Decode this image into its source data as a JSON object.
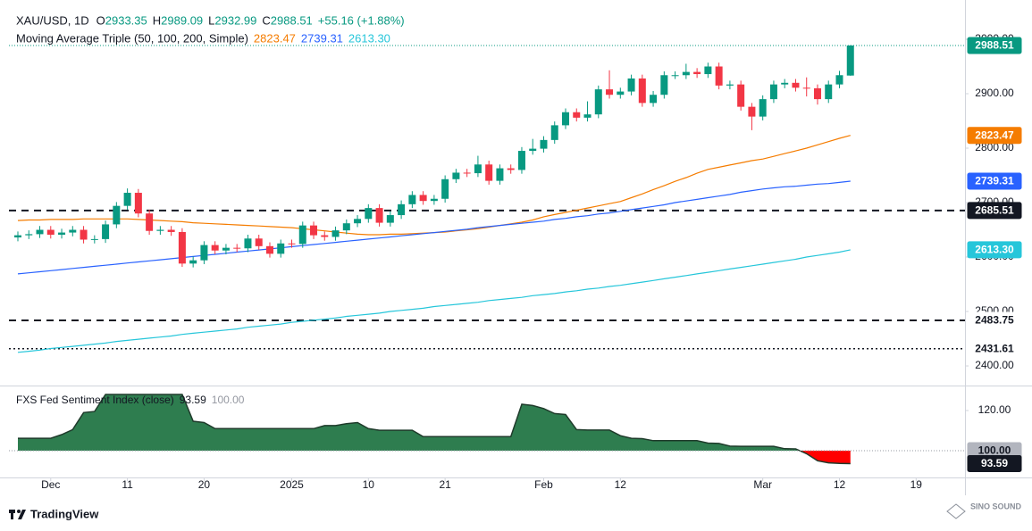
{
  "chart_data": [
    {
      "type": "candlestick",
      "title": "XAU/USD, 1D",
      "ohlc_labels": [
        "O",
        "H",
        "L",
        "C"
      ],
      "change_label": "+55.16 (+1.88%)",
      "open": [
        2636,
        2640,
        2642,
        2650,
        2641,
        2645,
        2650,
        2632,
        2633,
        2660,
        2694,
        2718,
        2680,
        2648,
        2650,
        2646,
        2588,
        2594,
        2622,
        2612,
        2617,
        2616,
        2634,
        2620,
        2606,
        2625,
        2624,
        2658,
        2640,
        2637,
        2649,
        2662,
        2670,
        2690,
        2663,
        2677,
        2697,
        2714,
        2703,
        2707,
        2743,
        2755,
        2754,
        2770,
        2740,
        2763,
        2760,
        2795,
        2799,
        2815,
        2842,
        2866,
        2856,
        2862,
        2908,
        2898,
        2904,
        2928,
        2883,
        2898,
        2934,
        2934,
        2940,
        2936,
        2950,
        2915,
        2917,
        2876,
        2858,
        2890,
        2917,
        2920,
        2911,
        2910,
        2890,
        2917,
        2933.35
      ],
      "high": [
        2647,
        2649,
        2657,
        2657,
        2652,
        2657,
        2657,
        2640,
        2667,
        2701,
        2726,
        2725,
        2687,
        2657,
        2657,
        2653,
        2601,
        2629,
        2629,
        2624,
        2624,
        2641,
        2641,
        2627,
        2632,
        2632,
        2665,
        2665,
        2647,
        2656,
        2669,
        2677,
        2697,
        2697,
        2684,
        2704,
        2721,
        2721,
        2714,
        2750,
        2762,
        2762,
        2786,
        2777,
        2770,
        2770,
        2802,
        2817,
        2822,
        2849,
        2873,
        2873,
        2886,
        2915,
        2943,
        2911,
        2935,
        2935,
        2905,
        2941,
        2941,
        2955,
        2947,
        2957,
        2957,
        2924,
        2924,
        2883,
        2897,
        2924,
        2927,
        2927,
        2930,
        2917,
        2924,
        2942,
        2989.09
      ],
      "low": [
        2629,
        2633,
        2635,
        2634,
        2634,
        2638,
        2625,
        2625,
        2626,
        2653,
        2687,
        2673,
        2641,
        2641,
        2639,
        2582,
        2581,
        2587,
        2605,
        2605,
        2609,
        2609,
        2613,
        2599,
        2599,
        2617,
        2617,
        2633,
        2630,
        2630,
        2642,
        2655,
        2663,
        2656,
        2656,
        2670,
        2690,
        2696,
        2696,
        2700,
        2736,
        2747,
        2747,
        2733,
        2733,
        2753,
        2753,
        2788,
        2792,
        2808,
        2835,
        2849,
        2849,
        2855,
        2891,
        2891,
        2897,
        2876,
        2876,
        2891,
        2927,
        2927,
        2929,
        2929,
        2908,
        2908,
        2869,
        2833,
        2851,
        2883,
        2910,
        2904,
        2895,
        2880,
        2883,
        2910,
        2932.99
      ],
      "close": [
        2640,
        2642,
        2650,
        2641,
        2645,
        2650,
        2632,
        2633,
        2660,
        2694,
        2718,
        2680,
        2648,
        2650,
        2646,
        2588,
        2594,
        2622,
        2612,
        2617,
        2616,
        2634,
        2620,
        2606,
        2625,
        2624,
        2658,
        2640,
        2637,
        2649,
        2662,
        2670,
        2690,
        2663,
        2677,
        2697,
        2714,
        2703,
        2707,
        2743,
        2755,
        2754,
        2770,
        2740,
        2763,
        2760,
        2795,
        2799,
        2815,
        2842,
        2866,
        2856,
        2862,
        2908,
        2898,
        2904,
        2928,
        2883,
        2898,
        2934,
        2934,
        2940,
        2936,
        2950,
        2915,
        2917,
        2876,
        2858,
        2890,
        2917,
        2920,
        2911,
        2910,
        2890,
        2917,
        2934,
        2988.51
      ],
      "up_color": "#089981",
      "down_color": "#f23645",
      "ylim": [
        2364,
        3059
      ],
      "yticks": [
        {
          "value": 2400,
          "label": "2400.00"
        },
        {
          "value": 2500,
          "label": "2500.00"
        },
        {
          "value": 2600,
          "label": "2600.00"
        },
        {
          "value": 2700,
          "label": "2700.00"
        },
        {
          "value": 2800,
          "label": "2800.00"
        },
        {
          "value": 2900,
          "label": "2900.00"
        },
        {
          "value": 3000,
          "label": "3000.00"
        }
      ],
      "xticks": [
        {
          "value": 3,
          "label": "Dec"
        },
        {
          "value": 10,
          "label": "11"
        },
        {
          "value": 17,
          "label": "20"
        },
        {
          "value": 25,
          "label": "2025"
        },
        {
          "value": 32,
          "label": "10"
        },
        {
          "value": 39,
          "label": "21"
        },
        {
          "value": 48,
          "label": "Feb"
        },
        {
          "value": 55,
          "label": "12"
        },
        {
          "value": 68,
          "label": "Mar"
        },
        {
          "value": 75,
          "label": "12"
        },
        {
          "value": 82,
          "label": "19"
        }
      ],
      "moving_average": {
        "name": "Moving Average Triple (50, 100, 200, Simple)",
        "series": [
          {
            "color": "#f57c00",
            "values": [
              2667,
              2668,
              2668,
              2669,
              2669,
              2669,
              2670,
              2670,
              2670,
              2670,
              2670,
              2669,
              2668,
              2667,
              2666,
              2665,
              2663,
              2662,
              2661,
              2660,
              2659,
              2658,
              2657,
              2656,
              2655,
              2654,
              2652,
              2650,
              2648,
              2646,
              2644,
              2642,
              2641,
              2641,
              2642,
              2642,
              2643,
              2644,
              2645,
              2646,
              2648,
              2650,
              2652,
              2655,
              2658,
              2661,
              2664,
              2668,
              2674,
              2678,
              2682,
              2686,
              2690,
              2694,
              2698,
              2702,
              2709,
              2716,
              2724,
              2731,
              2739,
              2746,
              2754,
              2761,
              2765,
              2769,
              2773,
              2777,
              2780,
              2785,
              2790,
              2795,
              2800,
              2806,
              2812,
              2818,
              2823.47
            ]
          },
          {
            "color": "#2962ff",
            "values": [
              2569,
              2571,
              2573,
              2575,
              2577,
              2579,
              2581,
              2583,
              2585,
              2587,
              2589,
              2591,
              2593,
              2595,
              2597,
              2599,
              2601,
              2603,
              2605,
              2607,
              2609,
              2611,
              2613,
              2615,
              2617,
              2619,
              2621,
              2623,
              2625,
              2627,
              2629,
              2631,
              2633,
              2635,
              2637,
              2639,
              2641,
              2643,
              2645,
              2647,
              2649,
              2651,
              2654,
              2656,
              2658,
              2660,
              2662,
              2664,
              2666,
              2669,
              2671,
              2674,
              2676,
              2679,
              2681,
              2684,
              2687,
              2690,
              2693,
              2696,
              2700,
              2703,
              2706,
              2709,
              2712,
              2715,
              2719,
              2722,
              2725,
              2727,
              2729,
              2730,
              2732,
              2734,
              2735,
              2737,
              2739.31
            ]
          },
          {
            "color": "#26c6da",
            "values": [
              2425,
              2427,
              2429,
              2432,
              2434,
              2436,
              2438,
              2440,
              2442,
              2445,
              2447,
              2449,
              2451,
              2453,
              2455,
              2458,
              2460,
              2462,
              2464,
              2466,
              2468,
              2471,
              2473,
              2475,
              2477,
              2480,
              2482,
              2484,
              2486,
              2488,
              2491,
              2493,
              2495,
              2497,
              2500,
              2502,
              2504,
              2506,
              2509,
              2511,
              2513,
              2515,
              2517,
              2520,
              2522,
              2524,
              2526,
              2529,
              2531,
              2533,
              2536,
              2538,
              2541,
              2543,
              2546,
              2548,
              2551,
              2554,
              2557,
              2560,
              2563,
              2566,
              2569,
              2572,
              2575,
              2578,
              2581,
              2584,
              2587,
              2590,
              2593,
              2596,
              2600,
              2603,
              2606,
              2609,
              2613.3
            ],
            "value_label": "2613.30"
          }
        ]
      },
      "levels": [
        {
          "value": 2685.51,
          "style": "dashed",
          "badge_color": "#131722"
        },
        {
          "value": 2483.75,
          "style": "dashed",
          "badge_color": "#ffffff"
        },
        {
          "value": 2431.61,
          "style": "dotted",
          "badge_color": "#ffffff"
        }
      ],
      "grid": false
    },
    {
      "type": "area",
      "title": "FXS Fed Sentiment Index (close)",
      "values": [
        106.2,
        106.2,
        106.2,
        106.2,
        108,
        110.5,
        119,
        119.5,
        128,
        128,
        128,
        128,
        128,
        128,
        128,
        128,
        114.7,
        114,
        111,
        111,
        111,
        111,
        111,
        111,
        111,
        111,
        111,
        111,
        112.5,
        112.5,
        113.5,
        114,
        111,
        110.2,
        110.2,
        110.2,
        110.2,
        107,
        107,
        107,
        107,
        107,
        107,
        107,
        107,
        107,
        123.1,
        122.5,
        121,
        118.5,
        118,
        110.5,
        110.3,
        110.3,
        110.3,
        107.5,
        106.2,
        106,
        105,
        105,
        105,
        105,
        105,
        103.8,
        103.6,
        102.3,
        102.2,
        102.2,
        102.2,
        102.2,
        101,
        100.9,
        98.5,
        95,
        94,
        93.7,
        93.59
      ],
      "baseline": {
        "value": 100,
        "label": "100.00"
      },
      "up_color": "#2e7d4f",
      "down_color": "#ff0000",
      "line_color": "#1f3b2b",
      "ylim": [
        86.7,
        132
      ],
      "yticks": [
        {
          "value": 120,
          "label": "120.00"
        }
      ]
    }
  ],
  "footer": {
    "brand": "TradingView",
    "watermark": "SINO SOUND"
  }
}
